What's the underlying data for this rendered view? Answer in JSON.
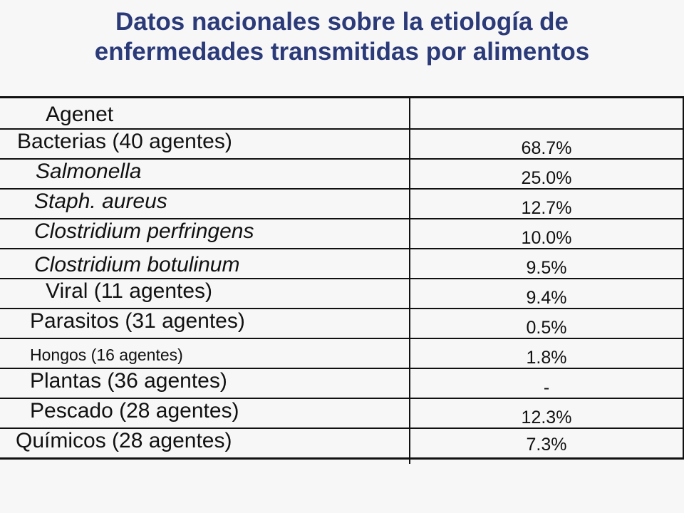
{
  "title": {
    "line1": "Datos nacionales sobre la etiología de",
    "line2": "enfermedades transmitidas por alimentos"
  },
  "table": {
    "header_label": "Agenet",
    "header_value": "",
    "rows": [
      {
        "label": "Bacterias (40 agentes)",
        "value": "68.7%"
      },
      {
        "label": "Salmonella",
        "value": "25.0%"
      },
      {
        "label": "Staph. aureus",
        "value": "12.7%"
      },
      {
        "label": "Clostridium perfringens",
        "value": "10.0%"
      },
      {
        "label": "Clostridium botulinum",
        "value": "9.5%"
      },
      {
        "label": "Viral (11 agentes)",
        "value": "9.4%"
      },
      {
        "label": "Parasitos (31 agentes)",
        "value": "0.5%"
      },
      {
        "label": "Hongos (16 agentes)",
        "value": "1.8%"
      },
      {
        "label": "Plantas (36 agentes)",
        "value": "-"
      },
      {
        "label": "Pescado (28 agentes)",
        "value": "12.3%"
      },
      {
        "label": "Químicos (28 agentes)",
        "value": "7.3%"
      }
    ]
  }
}
